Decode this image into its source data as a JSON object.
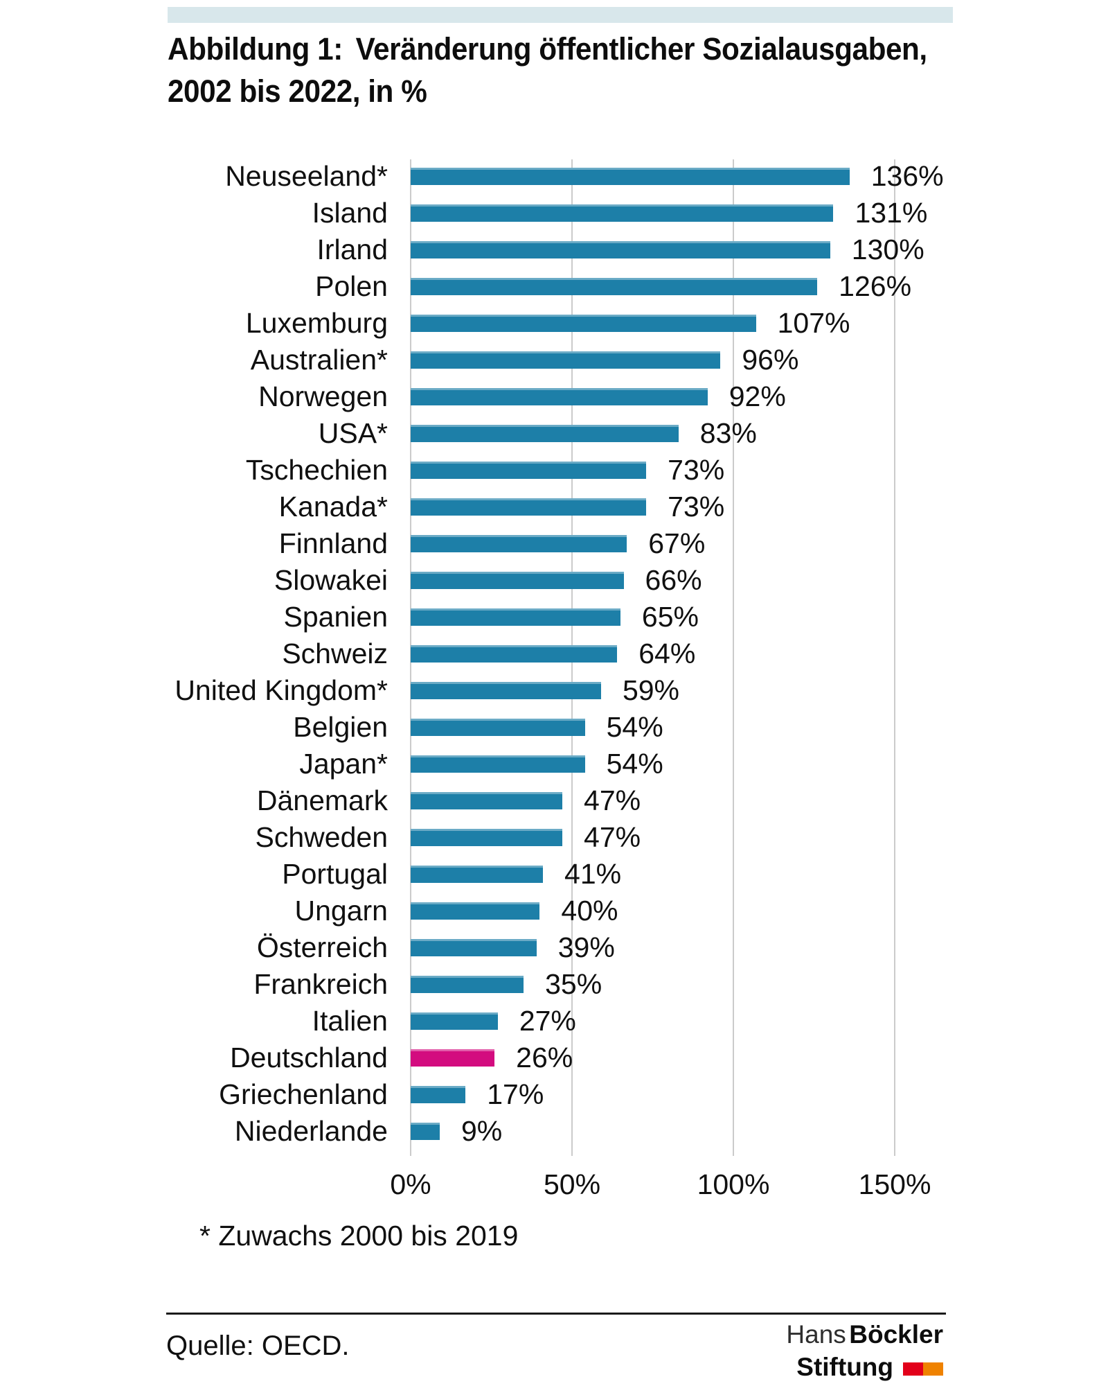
{
  "title": {
    "prefix": "Abbildung 1:",
    "line1": "Veränderung öffentlicher Sozialausgaben,",
    "line2": "2002 bis 2022, in %"
  },
  "chart_data": {
    "type": "bar",
    "orientation": "horizontal",
    "categories": [
      "Neuseeland*",
      "Island",
      "Irland",
      "Polen",
      "Luxemburg",
      "Australien*",
      "Norwegen",
      "USA*",
      "Tschechien",
      "Kanada*",
      "Finnland",
      "Slowakei",
      "Spanien",
      "Schweiz",
      "United Kingdom*",
      "Belgien",
      "Japan*",
      "Dänemark",
      "Schweden",
      "Portugal",
      "Ungarn",
      "Österreich",
      "Frankreich",
      "Italien",
      "Deutschland",
      "Griechenland",
      "Niederlande"
    ],
    "values": [
      136,
      131,
      130,
      126,
      107,
      96,
      92,
      83,
      73,
      73,
      67,
      66,
      65,
      64,
      59,
      54,
      54,
      47,
      47,
      41,
      40,
      39,
      35,
      27,
      26,
      17,
      9
    ],
    "value_labels": [
      "136%",
      "131%",
      "130%",
      "126%",
      "107%",
      "96%",
      "92%",
      "83%",
      "73%",
      "73%",
      "67%",
      "66%",
      "65%",
      "64%",
      "59%",
      "54%",
      "54%",
      "47%",
      "47%",
      "41%",
      "40%",
      "39%",
      "35%",
      "27%",
      "26%",
      "17%",
      "9%"
    ],
    "highlight_category": "Deutschland",
    "x_axis": {
      "ticks": [
        "0%",
        "50%",
        "100%",
        "150%"
      ],
      "tick_values": [
        0,
        50,
        100,
        150
      ],
      "min": 0,
      "max": 150,
      "grid": true
    },
    "colors": {
      "bar": "#1d7fa8",
      "highlight": "#d30c7f",
      "gridline": "#cbcbcb"
    }
  },
  "footnote": "* Zuwachs 2000 bis 2019",
  "source": "Quelle: OECD.",
  "logo": {
    "name_first": "Hans",
    "name_last": "Böckler",
    "line2": "Stiftung",
    "colors": {
      "red": "#e2001a",
      "orange": "#ef8200"
    }
  }
}
